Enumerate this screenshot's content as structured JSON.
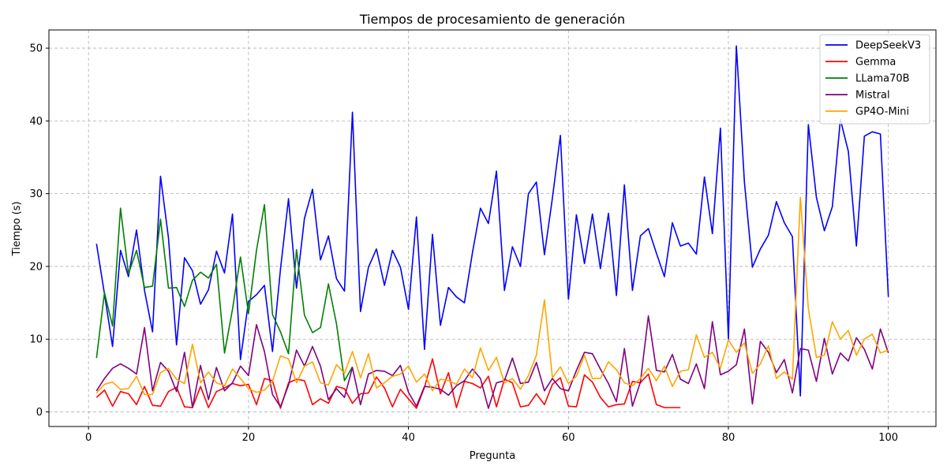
{
  "chart_data": {
    "type": "line",
    "title": "Tiempos de procesamiento de generación",
    "xlabel": "Pregunta",
    "ylabel": "Tiempo (s)",
    "xlim": [
      -4.95,
      105.95
    ],
    "ylim": [
      -2.0,
      52.5
    ],
    "xticks": [
      0,
      20,
      40,
      60,
      80,
      100
    ],
    "yticks": [
      0,
      10,
      20,
      30,
      40,
      50
    ],
    "grid": true,
    "legend_position": "top-right",
    "series": [
      {
        "name": "DeepSeekV3",
        "color": "#0000ff",
        "x": [
          1,
          2,
          3,
          4,
          5,
          6,
          7,
          8,
          9,
          10,
          11,
          12,
          13,
          14,
          15,
          16,
          17,
          18,
          19,
          20,
          21,
          22,
          23,
          24,
          25,
          26,
          27,
          28,
          29,
          30,
          31,
          32,
          33,
          34,
          35,
          36,
          37,
          38,
          39,
          40,
          41,
          42,
          43,
          44,
          45,
          46,
          47,
          48,
          49,
          50,
          51,
          52,
          53,
          54,
          55,
          56,
          57,
          58,
          59,
          60,
          61,
          62,
          63,
          64,
          65,
          66,
          67,
          68,
          69,
          70,
          71,
          72,
          73,
          74,
          75,
          76,
          77,
          78,
          79,
          80,
          81,
          82,
          83,
          84,
          85,
          86,
          87,
          88,
          89,
          90,
          91,
          92,
          93,
          94,
          95,
          96,
          97,
          98,
          99,
          100
        ],
        "y": [
          23.1,
          16.2,
          9.0,
          22.2,
          18.6,
          25.0,
          16.7,
          11.0,
          32.4,
          23.9,
          9.2,
          21.2,
          19.4,
          14.8,
          16.8,
          22.1,
          19.1,
          27.2,
          7.2,
          15.2,
          16.1,
          17.4,
          8.3,
          19.6,
          29.3,
          17.0,
          26.6,
          30.6,
          20.9,
          24.2,
          18.3,
          16.6,
          41.2,
          13.8,
          19.9,
          22.4,
          17.4,
          22.2,
          19.9,
          14.1,
          26.8,
          8.6,
          24.4,
          11.9,
          17.1,
          15.8,
          15.0,
          21.9,
          28.0,
          25.9,
          33.1,
          16.7,
          22.7,
          20.0,
          30.0,
          31.6,
          21.6,
          29.4,
          38.0,
          15.5,
          27.1,
          20.4,
          27.2,
          19.7,
          27.3,
          16.0,
          31.2,
          16.7,
          24.2,
          25.2,
          21.8,
          18.6,
          26.0,
          22.8,
          23.2,
          21.7,
          32.3,
          24.5,
          39.0,
          10.0,
          50.3,
          31.6,
          19.9,
          22.4,
          24.3,
          28.9,
          26.0,
          24.1,
          2.2,
          39.5,
          29.5,
          24.9,
          28.2,
          40.2,
          35.8,
          22.8,
          37.9,
          38.5,
          38.2,
          15.8
        ]
      },
      {
        "name": "Gemma",
        "color": "#ff0000",
        "x": [
          1,
          2,
          3,
          4,
          5,
          6,
          7,
          8,
          9,
          10,
          11,
          12,
          13,
          14,
          15,
          16,
          17,
          18,
          19,
          20,
          21,
          22,
          23,
          24,
          25,
          26,
          27,
          28,
          29,
          30,
          31,
          32,
          33,
          34,
          35,
          36,
          37,
          38,
          39,
          40,
          41,
          42,
          43,
          44,
          45,
          46,
          47,
          48,
          49,
          50,
          51,
          52,
          53,
          54,
          55,
          56,
          57,
          58,
          59,
          60,
          61,
          62,
          63,
          64,
          65,
          66,
          67,
          68,
          69,
          70,
          71,
          72,
          73,
          74
        ],
        "y": [
          2.0,
          3.0,
          0.8,
          2.8,
          2.5,
          1.0,
          3.5,
          0.9,
          0.8,
          2.8,
          3.4,
          0.7,
          0.6,
          3.5,
          0.6,
          2.8,
          3.3,
          3.9,
          3.6,
          3.8,
          1.0,
          4.6,
          4.3,
          0.5,
          4.0,
          4.5,
          4.3,
          1.0,
          1.8,
          1.2,
          3.5,
          3.2,
          1.2,
          2.5,
          2.6,
          4.8,
          3.3,
          0.7,
          3.1,
          1.8,
          0.5,
          3.4,
          7.3,
          2.5,
          5.4,
          0.6,
          4.2,
          3.9,
          3.3,
          4.9,
          0.7,
          4.5,
          4.0,
          0.7,
          0.9,
          2.5,
          1.0,
          3.8,
          4.7,
          0.8,
          0.7,
          5.1,
          4.1,
          2.0,
          0.7,
          1.0,
          1.1,
          4.2,
          4.0,
          5.2,
          1.0,
          0.6,
          0.6,
          0.6
        ]
      },
      {
        "name": "LLama70B",
        "color": "#008000",
        "x": [
          1,
          2,
          3,
          4,
          5,
          6,
          7,
          8,
          9,
          10,
          11,
          12,
          13,
          14,
          15,
          16,
          17,
          18,
          19,
          20,
          21,
          22,
          23,
          24,
          25,
          26,
          27,
          28,
          29,
          30,
          31,
          32,
          33
        ],
        "y": [
          7.4,
          16.4,
          11.8,
          28.0,
          19.0,
          22.2,
          17.1,
          17.3,
          26.5,
          17.0,
          17.1,
          14.5,
          18.1,
          19.2,
          18.4,
          20.3,
          8.1,
          14.1,
          21.3,
          13.5,
          22.2,
          28.5,
          13.4,
          11.0,
          8.0,
          22.3,
          13.3,
          10.9,
          11.6,
          17.6,
          12.1,
          4.3,
          6.2
        ]
      },
      {
        "name": "Mistral",
        "color": "#800080",
        "x": [
          1,
          2,
          3,
          4,
          5,
          6,
          7,
          8,
          9,
          10,
          11,
          12,
          13,
          14,
          15,
          16,
          17,
          18,
          19,
          20,
          21,
          22,
          23,
          24,
          25,
          26,
          27,
          28,
          29,
          30,
          31,
          32,
          33,
          34,
          35,
          36,
          37,
          38,
          39,
          40,
          41,
          42,
          43,
          44,
          45,
          46,
          47,
          48,
          49,
          50,
          51,
          52,
          53,
          54,
          55,
          56,
          57,
          58,
          59,
          60,
          61,
          62,
          63,
          64,
          65,
          66,
          67,
          68,
          69,
          70,
          71,
          72,
          73,
          74,
          75,
          76,
          77,
          78,
          79,
          80,
          81,
          82,
          83,
          84,
          85,
          86,
          87,
          88,
          89,
          90,
          91,
          92,
          93,
          94,
          95,
          96,
          97,
          98,
          99,
          100
        ],
        "y": [
          2.9,
          4.6,
          6.0,
          6.6,
          6.0,
          5.2,
          11.6,
          2.9,
          6.8,
          5.6,
          2.8,
          8.2,
          0.6,
          6.4,
          1.7,
          6.1,
          2.9,
          4.0,
          6.3,
          5.0,
          12.0,
          8.3,
          2.4,
          0.7,
          3.7,
          8.5,
          6.3,
          9.0,
          6.3,
          1.7,
          3.2,
          2.0,
          6.1,
          1.0,
          5.2,
          5.7,
          5.6,
          5.0,
          6.4,
          2.7,
          0.8,
          3.5,
          3.4,
          3.1,
          2.3,
          3.6,
          4.3,
          5.9,
          4.6,
          0.5,
          4.0,
          4.3,
          7.4,
          3.9,
          4.1,
          6.8,
          2.9,
          4.6,
          3.2,
          2.9,
          5.7,
          8.2,
          8.0,
          5.9,
          3.9,
          1.4,
          8.7,
          0.8,
          4.1,
          13.2,
          5.7,
          5.5,
          7.9,
          4.5,
          3.9,
          6.6,
          3.2,
          12.4,
          5.1,
          5.6,
          6.5,
          11.4,
          1.1,
          9.7,
          8.2,
          5.4,
          7.2,
          2.6,
          8.7,
          8.5,
          4.2,
          10.1,
          5.2,
          8.1,
          7.0,
          10.2,
          8.6,
          5.9,
          11.4,
          8.1
        ]
      },
      {
        "name": "GP4O-Mini",
        "color": "#ffa500",
        "x": [
          1,
          2,
          3,
          4,
          5,
          6,
          7,
          8,
          9,
          10,
          11,
          12,
          13,
          14,
          15,
          16,
          17,
          18,
          19,
          20,
          21,
          22,
          23,
          24,
          25,
          26,
          27,
          28,
          29,
          30,
          31,
          32,
          33,
          34,
          35,
          36,
          37,
          38,
          39,
          40,
          41,
          42,
          43,
          44,
          45,
          46,
          47,
          48,
          49,
          50,
          51,
          52,
          53,
          54,
          55,
          56,
          57,
          58,
          59,
          60,
          61,
          62,
          63,
          64,
          65,
          66,
          67,
          68,
          69,
          70,
          71,
          72,
          73,
          74,
          75,
          76,
          77,
          78,
          79,
          80,
          81,
          82,
          83,
          84,
          85,
          86,
          87,
          88,
          89,
          90,
          91,
          92,
          93,
          94,
          95,
          96,
          97,
          98,
          99,
          100
        ],
        "y": [
          2.6,
          3.8,
          4.1,
          3.1,
          3.2,
          4.9,
          2.4,
          2.4,
          5.4,
          6.0,
          4.5,
          3.9,
          9.3,
          4.0,
          5.5,
          4.0,
          3.6,
          5.9,
          4.6,
          3.2,
          2.7,
          3.0,
          4.2,
          7.7,
          7.3,
          4.0,
          6.3,
          6.9,
          4.0,
          3.7,
          6.5,
          5.3,
          8.3,
          4.7,
          8.0,
          3.3,
          4.0,
          4.9,
          5.2,
          6.3,
          4.1,
          5.2,
          2.9,
          4.5,
          4.3,
          3.8,
          5.9,
          4.7,
          8.8,
          5.7,
          7.5,
          4.0,
          4.6,
          3.1,
          5.0,
          7.8,
          15.4,
          4.7,
          6.2,
          3.9,
          4.9,
          7.8,
          4.6,
          4.6,
          6.9,
          5.8,
          4.0,
          3.6,
          4.6,
          6.0,
          4.3,
          6.3,
          3.5,
          5.6,
          5.8,
          10.6,
          7.5,
          8.2,
          6.0,
          9.9,
          8.2,
          9.5,
          5.3,
          6.6,
          9.1,
          4.6,
          5.5,
          4.5,
          29.5,
          14.2,
          7.5,
          7.8,
          12.4,
          10.0,
          11.2,
          7.8,
          10.0,
          10.7,
          8.1,
          8.5
        ]
      }
    ]
  }
}
